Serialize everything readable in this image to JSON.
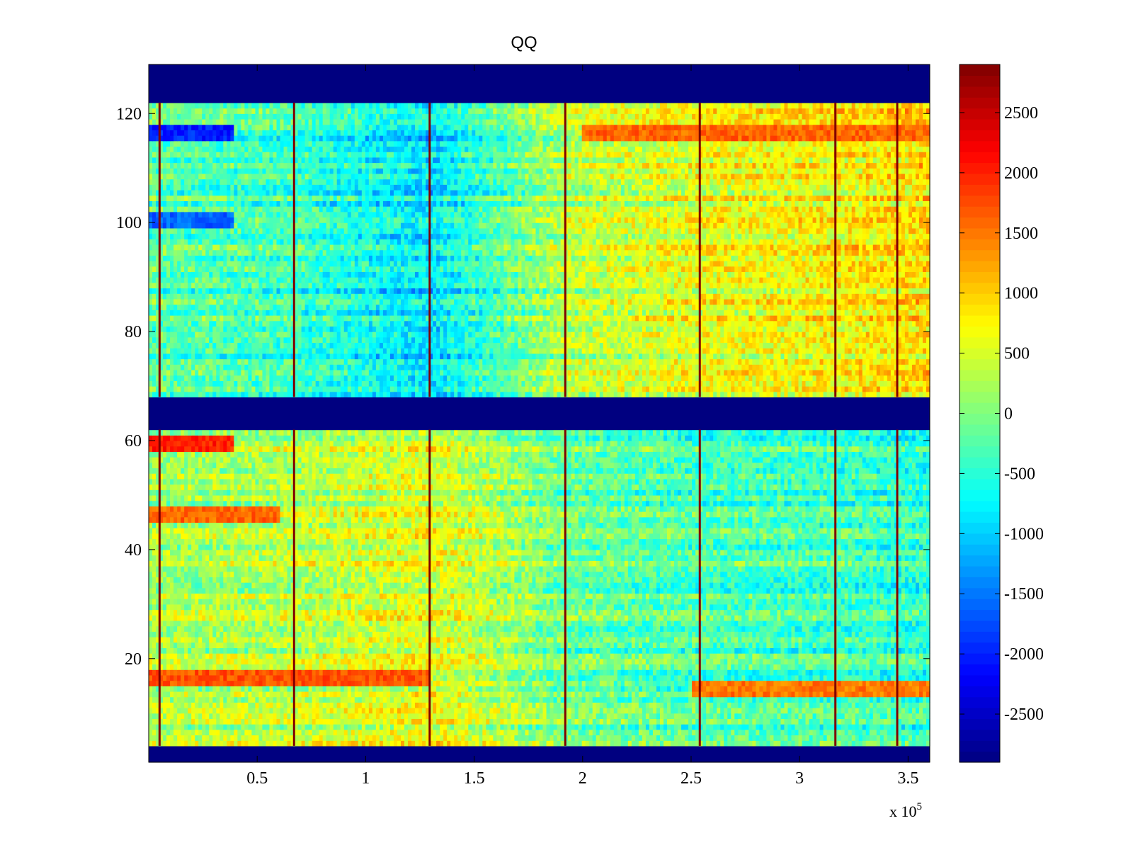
{
  "chart_data": {
    "type": "heatmap",
    "title": "QQ",
    "xlabel": "",
    "ylabel": "",
    "xlim": [
      0,
      360000
    ],
    "ylim": [
      1,
      129
    ],
    "x_multiplier_label": "x 10",
    "x_multiplier_exponent": "5",
    "x_ticks": [
      {
        "value": 50000,
        "label": "0.5"
      },
      {
        "value": 100000,
        "label": "1"
      },
      {
        "value": 150000,
        "label": "1.5"
      },
      {
        "value": 200000,
        "label": "2"
      },
      {
        "value": 250000,
        "label": "2.5"
      },
      {
        "value": 300000,
        "label": "3"
      },
      {
        "value": 350000,
        "label": "3.5"
      }
    ],
    "y_ticks": [
      {
        "value": 20,
        "label": "20"
      },
      {
        "value": 40,
        "label": "40"
      },
      {
        "value": 60,
        "label": "60"
      },
      {
        "value": 80,
        "label": "80"
      },
      {
        "value": 100,
        "label": "100"
      },
      {
        "value": 120,
        "label": "120"
      }
    ],
    "colorbar": {
      "colormap": "jet",
      "range": [
        -2900,
        2900
      ],
      "ticks": [
        {
          "value": 2500,
          "label": "2500"
        },
        {
          "value": 2000,
          "label": "2000"
        },
        {
          "value": 1500,
          "label": "1500"
        },
        {
          "value": 1000,
          "label": "1000"
        },
        {
          "value": 500,
          "label": "500"
        },
        {
          "value": 0,
          "label": "0"
        },
        {
          "value": -500,
          "label": "-500"
        },
        {
          "value": -1000,
          "label": "-1000"
        },
        {
          "value": -1500,
          "label": "-1500"
        },
        {
          "value": -2000,
          "label": "-2000"
        },
        {
          "value": -2500,
          "label": "-2500"
        }
      ]
    },
    "missing_row_bands": [
      {
        "y_from": 1,
        "y_to": 4,
        "value": -2900
      },
      {
        "y_from": 62,
        "y_to": 68,
        "value": -2900
      },
      {
        "y_from": 122,
        "y_to": 129,
        "value": -2900
      }
    ],
    "hot_columns_x": [
      5000,
      67000,
      129500,
      192000,
      254000,
      316500,
      345000
    ],
    "hot_column_value": 2900,
    "approx_background_by_x": [
      {
        "x": 0,
        "value": -200
      },
      {
        "x": 67000,
        "value": -400
      },
      {
        "x": 129500,
        "value": -900
      },
      {
        "x": 192000,
        "value": 300
      },
      {
        "x": 254000,
        "value": 600
      },
      {
        "x": 316500,
        "value": 700
      },
      {
        "x": 360000,
        "value": 900
      }
    ],
    "notable_row_features": [
      {
        "y": 116,
        "x_from": 0,
        "x_to": 40000,
        "value": -2000
      },
      {
        "y": 116,
        "x_from": 200000,
        "x_to": 360000,
        "value": 1600
      },
      {
        "y": 100,
        "x_from": 0,
        "x_to": 40000,
        "value": -1600
      },
      {
        "y": 59,
        "x_from": 0,
        "x_to": 40000,
        "value": 2000
      },
      {
        "y": 46,
        "x_from": 0,
        "x_to": 60000,
        "value": 1600
      },
      {
        "y": 16,
        "x_from": 0,
        "x_to": 130000,
        "value": 1700
      },
      {
        "y": 14,
        "x_from": 250000,
        "x_to": 360000,
        "value": 1500
      }
    ]
  }
}
